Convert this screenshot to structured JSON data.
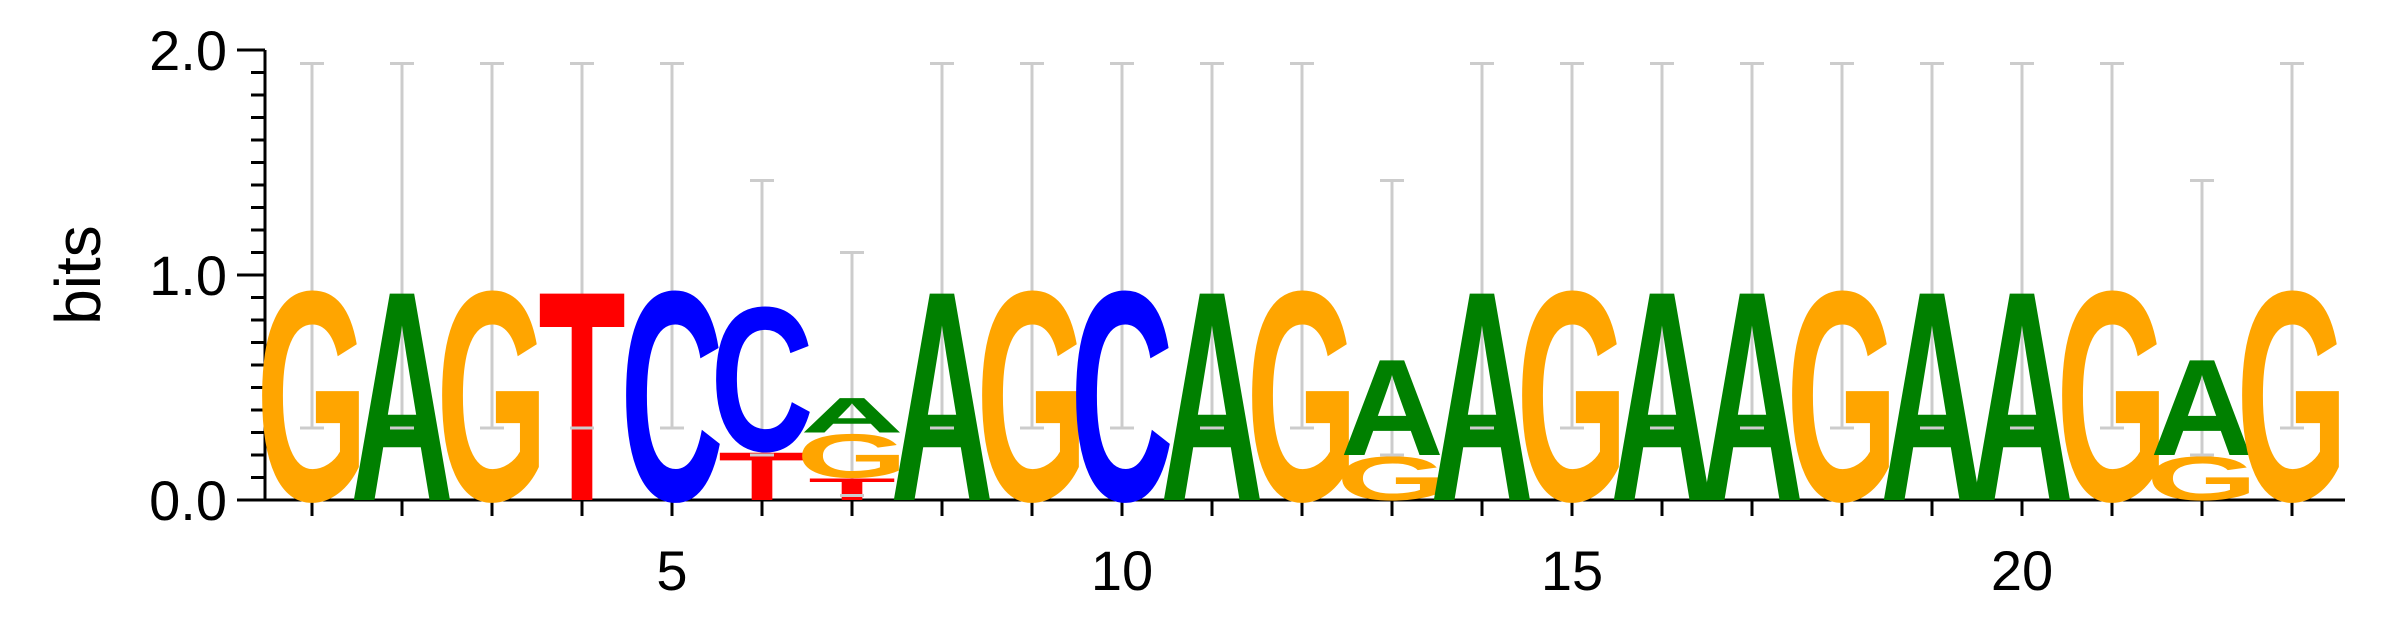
{
  "chart_data": {
    "type": "sequence-logo",
    "ylabel": "bits",
    "ylim": [
      0,
      2
    ],
    "y_ticks": [
      "0.0",
      "1.0",
      "2.0"
    ],
    "x_tick_labels": [
      "5",
      "10",
      "15",
      "20"
    ],
    "x_ticks": [
      5,
      10,
      15,
      20
    ],
    "positions": 23,
    "colors": {
      "A": "#008000",
      "C": "#0000ff",
      "G": "#ffa500",
      "T": "#ff0000"
    },
    "columns": [
      {
        "pos": 1,
        "letters": [
          {
            "base": "G",
            "bits": 0.96
          }
        ],
        "error_bar": [
          0.32,
          1.94
        ]
      },
      {
        "pos": 2,
        "letters": [
          {
            "base": "A",
            "bits": 0.96
          }
        ],
        "error_bar": [
          0.32,
          1.94
        ]
      },
      {
        "pos": 3,
        "letters": [
          {
            "base": "G",
            "bits": 0.96
          }
        ],
        "error_bar": [
          0.32,
          1.94
        ]
      },
      {
        "pos": 4,
        "letters": [
          {
            "base": "T",
            "bits": 0.96
          }
        ],
        "error_bar": [
          0.32,
          1.94
        ]
      },
      {
        "pos": 5,
        "letters": [
          {
            "base": "C",
            "bits": 0.96
          }
        ],
        "error_bar": [
          0.32,
          1.94
        ]
      },
      {
        "pos": 6,
        "letters": [
          {
            "base": "T",
            "bits": 0.22
          },
          {
            "base": "C",
            "bits": 0.66
          }
        ],
        "error_bar": [
          0.2,
          1.42
        ]
      },
      {
        "pos": 7,
        "letters": [
          {
            "base": "T",
            "bits": 0.1
          },
          {
            "base": "G",
            "bits": 0.2
          },
          {
            "base": "A",
            "bits": 0.16
          }
        ],
        "error_bar": [
          0.02,
          1.1
        ]
      },
      {
        "pos": 8,
        "letters": [
          {
            "base": "A",
            "bits": 0.96
          }
        ],
        "error_bar": [
          0.32,
          1.94
        ]
      },
      {
        "pos": 9,
        "letters": [
          {
            "base": "G",
            "bits": 0.96
          }
        ],
        "error_bar": [
          0.32,
          1.94
        ]
      },
      {
        "pos": 10,
        "letters": [
          {
            "base": "C",
            "bits": 0.96
          }
        ],
        "error_bar": [
          0.32,
          1.94
        ]
      },
      {
        "pos": 11,
        "letters": [
          {
            "base": "A",
            "bits": 0.96
          }
        ],
        "error_bar": [
          0.32,
          1.94
        ]
      },
      {
        "pos": 12,
        "letters": [
          {
            "base": "G",
            "bits": 0.96
          }
        ],
        "error_bar": [
          0.32,
          1.94
        ]
      },
      {
        "pos": 13,
        "letters": [
          {
            "base": "G",
            "bits": 0.2
          },
          {
            "base": "A",
            "bits": 0.44
          }
        ],
        "error_bar": [
          0.2,
          1.42
        ]
      },
      {
        "pos": 14,
        "letters": [
          {
            "base": "A",
            "bits": 0.96
          }
        ],
        "error_bar": [
          0.32,
          1.94
        ]
      },
      {
        "pos": 15,
        "letters": [
          {
            "base": "G",
            "bits": 0.96
          }
        ],
        "error_bar": [
          0.32,
          1.94
        ]
      },
      {
        "pos": 16,
        "letters": [
          {
            "base": "A",
            "bits": 0.96
          }
        ],
        "error_bar": [
          0.32,
          1.94
        ]
      },
      {
        "pos": 17,
        "letters": [
          {
            "base": "A",
            "bits": 0.96
          }
        ],
        "error_bar": [
          0.32,
          1.94
        ]
      },
      {
        "pos": 18,
        "letters": [
          {
            "base": "G",
            "bits": 0.96
          }
        ],
        "error_bar": [
          0.32,
          1.94
        ]
      },
      {
        "pos": 19,
        "letters": [
          {
            "base": "A",
            "bits": 0.96
          }
        ],
        "error_bar": [
          0.32,
          1.94
        ]
      },
      {
        "pos": 20,
        "letters": [
          {
            "base": "A",
            "bits": 0.96
          }
        ],
        "error_bar": [
          0.32,
          1.94
        ]
      },
      {
        "pos": 21,
        "letters": [
          {
            "base": "G",
            "bits": 0.96
          }
        ],
        "error_bar": [
          0.32,
          1.94
        ]
      },
      {
        "pos": 22,
        "letters": [
          {
            "base": "G",
            "bits": 0.2
          },
          {
            "base": "A",
            "bits": 0.44
          }
        ],
        "error_bar": [
          0.2,
          1.42
        ]
      },
      {
        "pos": 23,
        "letters": [
          {
            "base": "G",
            "bits": 0.96
          }
        ],
        "error_bar": [
          0.32,
          1.94
        ]
      }
    ]
  }
}
